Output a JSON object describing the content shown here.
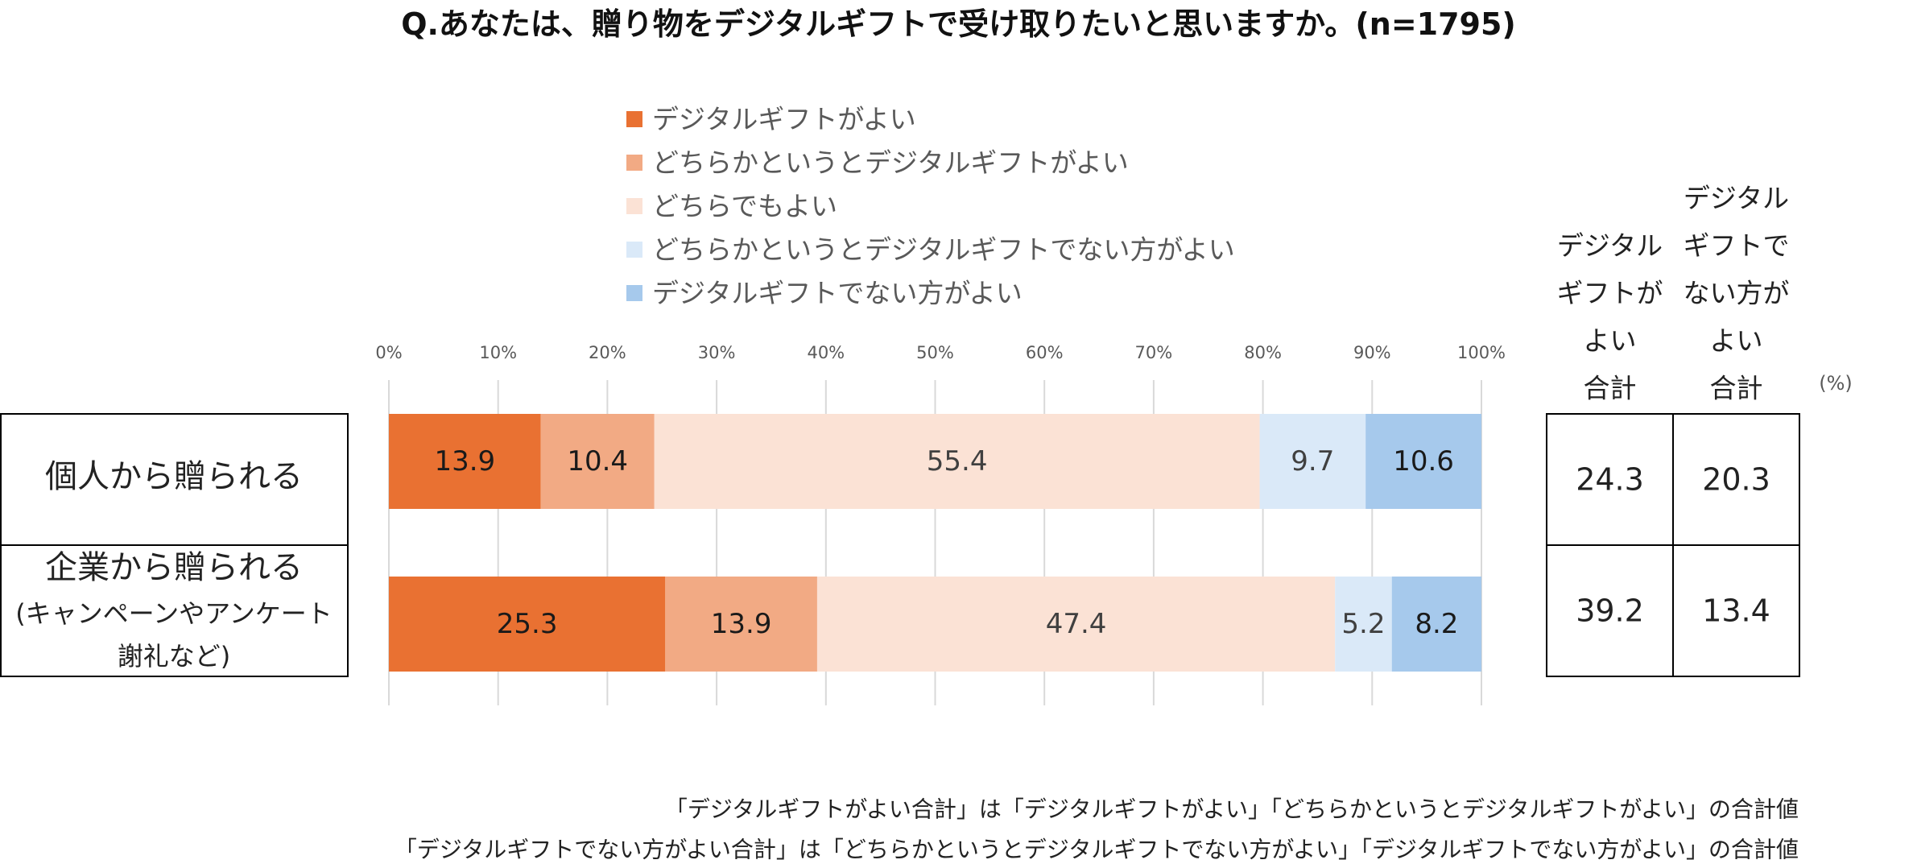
{
  "chart_data": {
    "type": "bar",
    "orientation": "horizontal",
    "stacked": "percent",
    "title": "Q.あなたは、贈り物をデジタルギフトで受け取りたいと思いますか。(n=1795)",
    "xlim": [
      0,
      100
    ],
    "x_ticks": [
      "0%",
      "10%",
      "20%",
      "30%",
      "40%",
      "50%",
      "60%",
      "70%",
      "80%",
      "90%",
      "100%"
    ],
    "grid": true,
    "legend_position": "top",
    "categories": [
      {
        "lines": [
          "個人から贈られる"
        ]
      },
      {
        "lines": [
          "企業から贈られる",
          "(キャンペーンやアンケート",
          "謝礼など)"
        ]
      }
    ],
    "series": [
      {
        "name": "デジタルギフトがよい",
        "color": "#E97132",
        "label_color": "#1a1a1a",
        "values": [
          13.9,
          25.3
        ]
      },
      {
        "name": "どちらかというとデジタルギフトがよい",
        "color": "#F2AA84",
        "label_color": "#1a1a1a",
        "values": [
          10.4,
          13.9
        ]
      },
      {
        "name": "どちらでもよい",
        "color": "#FBE2D5",
        "label_color": "#404040",
        "values": [
          55.4,
          47.4
        ]
      },
      {
        "name": "どちらかというとデジタルギフトでない方がよい",
        "color": "#DAE9F8",
        "label_color": "#404040",
        "values": [
          9.7,
          5.2
        ]
      },
      {
        "name": "デジタルギフトでない方がよい",
        "color": "#A6C9EC",
        "label_color": "#1a1a1a",
        "values": [
          10.6,
          8.2
        ]
      }
    ],
    "totals_table": {
      "headers": [
        [
          "デジタル",
          "ギフトが",
          "よい",
          "合計"
        ],
        [
          "デジタル",
          "ギフトで",
          "ない方が",
          "よい",
          "合計"
        ]
      ],
      "unit": "(%)",
      "rows": [
        [
          "24.3",
          "20.3"
        ],
        [
          "39.2",
          "13.4"
        ]
      ]
    },
    "notes": [
      "「デジタルギフトがよい合計」は「デジタルギフトがよい」「どちらかというとデジタルギフトがよい」の合計値",
      "「デジタルギフトでない方がよい合計」は「どちらかというとデジタルギフトでない方がよい」「デジタルギフトでない方がよい」の合計値"
    ]
  }
}
